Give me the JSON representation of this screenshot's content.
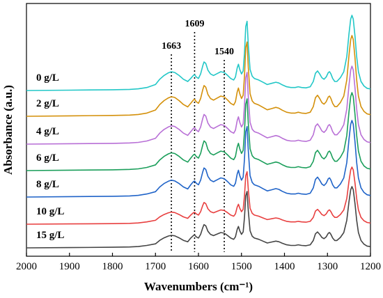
{
  "chart_data": {
    "type": "line",
    "xlabel": "Wavenumbers (cm⁻¹)",
    "ylabel": "Absorbance (a.u.)",
    "xlim": [
      2000,
      1200
    ],
    "x_reversed": true,
    "x_ticks": [
      2000,
      1900,
      1800,
      1700,
      1600,
      1500,
      1400,
      1300,
      1200
    ],
    "grid": false,
    "reference_lines": [
      1663,
      1609,
      1540
    ],
    "series": [
      {
        "name": "0 g/L",
        "color": "#22c7c7"
      },
      {
        "name": "2 g/L",
        "color": "#d4900a"
      },
      {
        "name": "4 g/L",
        "color": "#b86fd6"
      },
      {
        "name": "6 g/L",
        "color": "#1a9e5a"
      },
      {
        "name": "8 g/L",
        "color": "#1f63c8"
      },
      {
        "name": "10 g/L",
        "color": "#e83f3f"
      },
      {
        "name": "15 g/L",
        "color": "#444444"
      }
    ],
    "spectrum_shape": {
      "x": [
        2000,
        1900,
        1800,
        1760,
        1740,
        1720,
        1700,
        1690,
        1680,
        1670,
        1663,
        1655,
        1645,
        1635,
        1625,
        1618,
        1612,
        1609,
        1605,
        1600,
        1595,
        1590,
        1587,
        1583,
        1578,
        1572,
        1565,
        1555,
        1548,
        1540,
        1532,
        1525,
        1518,
        1514,
        1510,
        1507,
        1504,
        1500,
        1496,
        1493,
        1490,
        1487,
        1484,
        1480,
        1475,
        1470,
        1460,
        1450,
        1440,
        1430,
        1420,
        1413,
        1405,
        1395,
        1385,
        1375,
        1368,
        1360,
        1350,
        1340,
        1333,
        1328,
        1323,
        1318,
        1313,
        1308,
        1303,
        1298,
        1295,
        1292,
        1288,
        1283,
        1278,
        1270,
        1262,
        1255,
        1250,
        1246,
        1243,
        1240,
        1236,
        1232,
        1228,
        1222,
        1215,
        1208,
        1200
      ],
      "y": [
        0.0,
        0.005,
        0.01,
        0.015,
        0.022,
        0.04,
        0.08,
        0.15,
        0.2,
        0.235,
        0.25,
        0.24,
        0.2,
        0.15,
        0.12,
        0.16,
        0.2,
        0.21,
        0.18,
        0.16,
        0.22,
        0.33,
        0.38,
        0.36,
        0.27,
        0.22,
        0.2,
        0.23,
        0.25,
        0.24,
        0.2,
        0.16,
        0.14,
        0.18,
        0.3,
        0.35,
        0.28,
        0.22,
        0.26,
        0.5,
        0.85,
        0.92,
        0.6,
        0.28,
        0.19,
        0.16,
        0.14,
        0.11,
        0.08,
        0.095,
        0.11,
        0.1,
        0.075,
        0.05,
        0.04,
        0.04,
        0.05,
        0.04,
        0.035,
        0.05,
        0.12,
        0.23,
        0.26,
        0.22,
        0.17,
        0.15,
        0.18,
        0.24,
        0.25,
        0.22,
        0.16,
        0.12,
        0.12,
        0.17,
        0.25,
        0.45,
        0.75,
        0.95,
        1.0,
        0.95,
        0.72,
        0.45,
        0.25,
        0.12,
        0.06,
        0.03,
        0.02
      ]
    }
  }
}
